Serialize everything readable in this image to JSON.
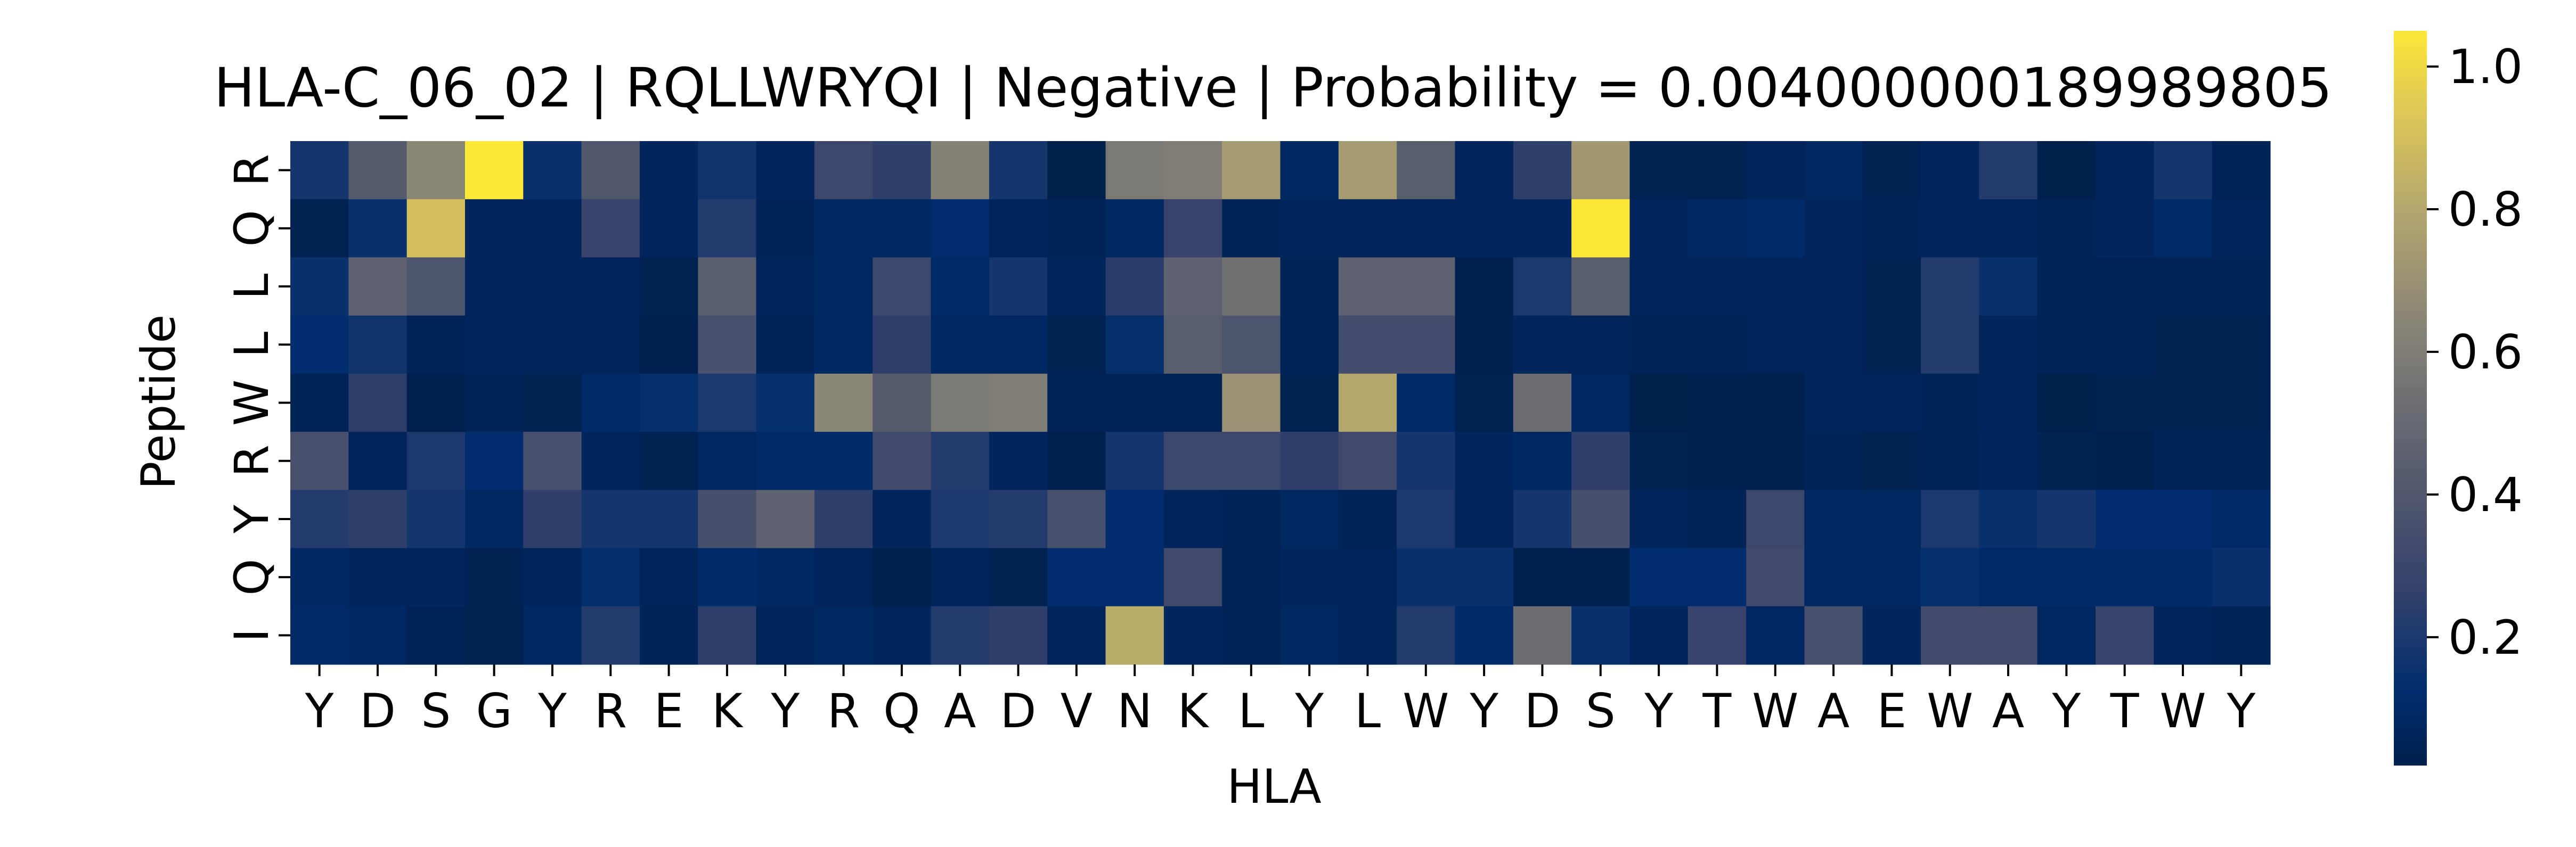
{
  "chart_data": {
    "type": "heatmap",
    "title": "HLA-C_06_02 | RQLLWRYQI | Negative | Probability = 0.004000000189989805",
    "xlabel": "HLA",
    "ylabel": "Peptide",
    "x": [
      "Y",
      "D",
      "S",
      "G",
      "Y",
      "R",
      "E",
      "K",
      "Y",
      "R",
      "Q",
      "A",
      "D",
      "V",
      "N",
      "K",
      "L",
      "Y",
      "L",
      "W",
      "Y",
      "D",
      "S",
      "Y",
      "T",
      "W",
      "A",
      "E",
      "W",
      "A",
      "Y",
      "T",
      "W",
      "Y"
    ],
    "y": [
      "R",
      "Q",
      "L",
      "L",
      "W",
      "R",
      "Y",
      "Q",
      "I"
    ],
    "values": [
      [
        0.18,
        0.42,
        0.65,
        1.05,
        0.15,
        0.4,
        0.07,
        0.17,
        0.06,
        0.3,
        0.25,
        0.62,
        0.18,
        0.02,
        0.58,
        0.6,
        0.75,
        0.08,
        0.75,
        0.44,
        0.06,
        0.25,
        0.73,
        0.04,
        0.04,
        0.06,
        0.08,
        0.04,
        0.07,
        0.22,
        0.02,
        0.06,
        0.18,
        0.05
      ],
      [
        0.04,
        0.15,
        0.9,
        0.07,
        0.07,
        0.28,
        0.07,
        0.22,
        0.05,
        0.08,
        0.09,
        0.12,
        0.06,
        0.05,
        0.08,
        0.28,
        0.05,
        0.06,
        0.06,
        0.06,
        0.06,
        0.07,
        1.05,
        0.06,
        0.09,
        0.1,
        0.07,
        0.05,
        0.07,
        0.07,
        0.05,
        0.07,
        0.1,
        0.06
      ],
      [
        0.15,
        0.46,
        0.38,
        0.07,
        0.07,
        0.06,
        0.04,
        0.44,
        0.06,
        0.08,
        0.3,
        0.1,
        0.18,
        0.06,
        0.24,
        0.46,
        0.54,
        0.05,
        0.46,
        0.46,
        0.03,
        0.2,
        0.44,
        0.06,
        0.06,
        0.06,
        0.07,
        0.04,
        0.22,
        0.15,
        0.05,
        0.05,
        0.05,
        0.05
      ],
      [
        0.12,
        0.17,
        0.05,
        0.07,
        0.06,
        0.06,
        0.03,
        0.36,
        0.05,
        0.09,
        0.25,
        0.08,
        0.08,
        0.04,
        0.14,
        0.44,
        0.38,
        0.05,
        0.34,
        0.34,
        0.03,
        0.07,
        0.06,
        0.05,
        0.05,
        0.06,
        0.07,
        0.04,
        0.22,
        0.07,
        0.05,
        0.05,
        0.04,
        0.04
      ],
      [
        0.05,
        0.25,
        0.03,
        0.05,
        0.04,
        0.1,
        0.14,
        0.2,
        0.14,
        0.65,
        0.42,
        0.58,
        0.6,
        0.05,
        0.05,
        0.05,
        0.7,
        0.04,
        0.8,
        0.1,
        0.04,
        0.52,
        0.08,
        0.02,
        0.03,
        0.03,
        0.06,
        0.06,
        0.05,
        0.06,
        0.02,
        0.04,
        0.04,
        0.04
      ],
      [
        0.36,
        0.06,
        0.2,
        0.12,
        0.36,
        0.07,
        0.04,
        0.08,
        0.1,
        0.1,
        0.32,
        0.22,
        0.07,
        0.03,
        0.18,
        0.3,
        0.3,
        0.25,
        0.32,
        0.18,
        0.07,
        0.08,
        0.25,
        0.04,
        0.03,
        0.03,
        0.05,
        0.04,
        0.05,
        0.07,
        0.04,
        0.03,
        0.05,
        0.05
      ],
      [
        0.22,
        0.25,
        0.18,
        0.09,
        0.25,
        0.18,
        0.18,
        0.35,
        0.46,
        0.25,
        0.07,
        0.2,
        0.22,
        0.36,
        0.12,
        0.06,
        0.05,
        0.08,
        0.05,
        0.2,
        0.06,
        0.18,
        0.35,
        0.07,
        0.05,
        0.3,
        0.08,
        0.08,
        0.2,
        0.15,
        0.18,
        0.12,
        0.12,
        0.1
      ],
      [
        0.09,
        0.07,
        0.07,
        0.04,
        0.07,
        0.13,
        0.06,
        0.11,
        0.09,
        0.06,
        0.03,
        0.06,
        0.04,
        0.12,
        0.12,
        0.32,
        0.05,
        0.07,
        0.06,
        0.15,
        0.15,
        0.03,
        0.03,
        0.12,
        0.12,
        0.32,
        0.08,
        0.08,
        0.14,
        0.1,
        0.1,
        0.11,
        0.11,
        0.15
      ],
      [
        0.1,
        0.09,
        0.05,
        0.04,
        0.09,
        0.22,
        0.05,
        0.25,
        0.06,
        0.08,
        0.07,
        0.22,
        0.25,
        0.06,
        0.82,
        0.07,
        0.05,
        0.08,
        0.06,
        0.22,
        0.11,
        0.52,
        0.15,
        0.07,
        0.28,
        0.08,
        0.36,
        0.07,
        0.32,
        0.32,
        0.08,
        0.28,
        0.06,
        0.05
      ]
    ],
    "vmin": 0.02,
    "vmax": 1.05,
    "colormap": "cividis",
    "colorbar_ticks": [
      "0.2",
      "0.4",
      "0.6",
      "0.8",
      "1.0"
    ]
  }
}
